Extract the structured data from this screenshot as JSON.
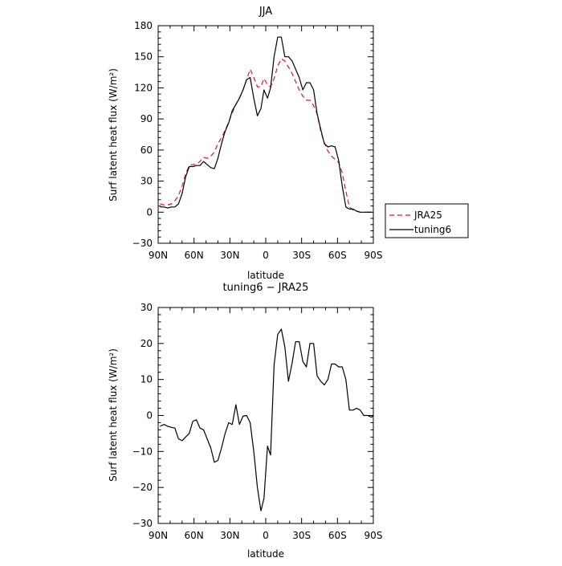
{
  "chart_data": [
    {
      "type": "line",
      "title": "JJA",
      "xlabel": "latitude",
      "ylabel": "Surf latent heat flux (W/m²)",
      "xlim": [
        90,
        -90
      ],
      "ylim": [
        -30,
        180
      ],
      "xticks": [
        90,
        60,
        30,
        0,
        -30,
        -60,
        -90
      ],
      "xtick_labels": [
        "90N",
        "60N",
        "30N",
        "0",
        "30S",
        "60S",
        "90S"
      ],
      "yticks": [
        -30,
        0,
        30,
        60,
        90,
        120,
        150,
        180
      ],
      "ytick_labels": [
        "−30",
        "0",
        "30",
        "60",
        "90",
        "120",
        "150",
        "180"
      ],
      "grid": false,
      "legend": "outside-right",
      "series": [
        {
          "name": "JRA25",
          "color": "#e8141c",
          "dash": "dashed",
          "points": [
            [
              88.5,
              8
            ],
            [
              85,
              7
            ],
            [
              82,
              7
            ],
            [
              79,
              8
            ],
            [
              76,
              11
            ],
            [
              73,
              16
            ],
            [
              70,
              25
            ],
            [
              67,
              37
            ],
            [
              64,
              45
            ],
            [
              61,
              46
            ],
            [
              58,
              46
            ],
            [
              55,
              49
            ],
            [
              52,
              53
            ],
            [
              49,
              52
            ],
            [
              46,
              54
            ],
            [
              43,
              58
            ],
            [
              40,
              66
            ],
            [
              37,
              72
            ],
            [
              34,
              79
            ],
            [
              31,
              87
            ],
            [
              28,
              96
            ],
            [
              25,
              104
            ],
            [
              22,
              110
            ],
            [
              19,
              118
            ],
            [
              16,
              128
            ],
            [
              13,
              138
            ],
            [
              10,
              130
            ],
            [
              7,
              121
            ],
            [
              4,
              121
            ],
            [
              1.5,
              129
            ],
            [
              -1.5,
              123
            ],
            [
              -4,
              121
            ],
            [
              -7,
              129
            ],
            [
              -10,
              141
            ],
            [
              -13,
              148
            ],
            [
              -16,
              146
            ],
            [
              -19,
              140
            ],
            [
              -22,
              134
            ],
            [
              -25,
              126
            ],
            [
              -28,
              118
            ],
            [
              -31,
              112
            ],
            [
              -34,
              108
            ],
            [
              -37,
              108
            ],
            [
              -40,
              103
            ],
            [
              -43,
              95
            ],
            [
              -46,
              78
            ],
            [
              -49,
              67
            ],
            [
              -52,
              59
            ],
            [
              -55,
              54
            ],
            [
              -58,
              51
            ],
            [
              -61,
              48
            ],
            [
              -64,
              38
            ],
            [
              -67,
              20
            ],
            [
              -70,
              5
            ],
            [
              -73,
              2
            ],
            [
              -76,
              1
            ],
            [
              -79,
              0
            ],
            [
              -82,
              0
            ],
            [
              -85,
              0
            ],
            [
              -88.5,
              0
            ]
          ]
        },
        {
          "name": "tuning6",
          "color": "#000000",
          "dash": "solid",
          "points": [
            [
              88.5,
              5
            ],
            [
              85,
              5
            ],
            [
              82,
              4
            ],
            [
              79,
              5
            ],
            [
              76,
              5
            ],
            [
              73,
              8
            ],
            [
              70,
              18
            ],
            [
              67,
              34
            ],
            [
              64,
              44
            ],
            [
              61,
              44
            ],
            [
              58,
              45
            ],
            [
              55,
              45
            ],
            [
              52,
              49
            ],
            [
              49,
              46
            ],
            [
              46,
              43
            ],
            [
              43,
              42
            ],
            [
              40,
              52
            ],
            [
              37,
              66
            ],
            [
              34,
              78
            ],
            [
              31,
              86
            ],
            [
              28,
              98
            ],
            [
              25,
              104
            ],
            [
              22,
              110
            ],
            [
              19,
              118
            ],
            [
              16,
              128
            ],
            [
              13,
              130
            ],
            [
              10,
              110
            ],
            [
              7,
              93
            ],
            [
              4,
              100
            ],
            [
              1.5,
              118
            ],
            [
              -1.5,
              110
            ],
            [
              -4,
              120
            ],
            [
              -7,
              150
            ],
            [
              -10,
              169
            ],
            [
              -13,
              169
            ],
            [
              -16,
              150
            ],
            [
              -19,
              150
            ],
            [
              -22,
              146
            ],
            [
              -25,
              138
            ],
            [
              -28,
              130
            ],
            [
              -31,
              118
            ],
            [
              -34,
              125
            ],
            [
              -37,
              125
            ],
            [
              -40,
              118
            ],
            [
              -43,
              95
            ],
            [
              -46,
              80
            ],
            [
              -49,
              66
            ],
            [
              -52,
              63
            ],
            [
              -55,
              64
            ],
            [
              -58,
              63
            ],
            [
              -61,
              50
            ],
            [
              -64,
              25
            ],
            [
              -67,
              5
            ],
            [
              -70,
              3
            ],
            [
              -73,
              3
            ],
            [
              -76,
              1
            ],
            [
              -79,
              0
            ],
            [
              -82,
              0
            ],
            [
              -85,
              0
            ],
            [
              -88.5,
              0
            ]
          ]
        }
      ]
    },
    {
      "type": "line",
      "title": "tuning6 − JRA25",
      "xlabel": "latitude",
      "ylabel": "Surf latent heat flux (W/m²)",
      "xlim": [
        90,
        -90
      ],
      "ylim": [
        -30,
        30
      ],
      "xticks": [
        90,
        60,
        30,
        0,
        -30,
        -60,
        -90
      ],
      "xtick_labels": [
        "90N",
        "60N",
        "30N",
        "0",
        "30S",
        "60S",
        "90S"
      ],
      "yticks": [
        -30,
        -20,
        -10,
        0,
        10,
        20,
        30
      ],
      "ytick_labels": [
        "−30",
        "−20",
        "−10",
        "0",
        "10",
        "20",
        "30"
      ],
      "grid": false,
      "series": [
        {
          "color": "#000000",
          "dash": "solid",
          "points": [
            [
              88.5,
              -3
            ],
            [
              85,
              -2.5
            ],
            [
              82,
              -3
            ],
            [
              79,
              -3.3
            ],
            [
              76,
              -3.5
            ],
            [
              73,
              -6.5
            ],
            [
              70,
              -7
            ],
            [
              67,
              -6
            ],
            [
              64,
              -5
            ],
            [
              61,
              -1.6
            ],
            [
              58,
              -1.2
            ],
            [
              55,
              -3.5
            ],
            [
              52,
              -4
            ],
            [
              49,
              -6.5
            ],
            [
              46,
              -9
            ],
            [
              43,
              -13
            ],
            [
              40,
              -12.5
            ],
            [
              37,
              -9
            ],
            [
              34,
              -5
            ],
            [
              31,
              -2
            ],
            [
              28,
              -2.5
            ],
            [
              25,
              3
            ],
            [
              22,
              -2.5
            ],
            [
              19,
              -0.2
            ],
            [
              16,
              0
            ],
            [
              13,
              -2
            ],
            [
              10,
              -10
            ],
            [
              7,
              -20
            ],
            [
              4,
              -26.5
            ],
            [
              1.5,
              -23
            ],
            [
              -1.5,
              -8.5
            ],
            [
              -4,
              -11
            ],
            [
              -7,
              14
            ],
            [
              -10,
              22.5
            ],
            [
              -13,
              24
            ],
            [
              -16,
              19
            ],
            [
              -19,
              9.5
            ],
            [
              -22,
              14.5
            ],
            [
              -25,
              20.5
            ],
            [
              -28,
              20.5
            ],
            [
              -31,
              15
            ],
            [
              -34,
              13.5
            ],
            [
              -37,
              20
            ],
            [
              -40,
              20
            ],
            [
              -43,
              11
            ],
            [
              -46,
              9.5
            ],
            [
              -49,
              8.5
            ],
            [
              -52,
              10
            ],
            [
              -55,
              14.3
            ],
            [
              -58,
              14.3
            ],
            [
              -61,
              13.5
            ],
            [
              -64,
              13.5
            ],
            [
              -67,
              10
            ],
            [
              -70,
              1.5
            ],
            [
              -73,
              1.5
            ],
            [
              -76,
              2
            ],
            [
              -79,
              1.5
            ],
            [
              -82,
              0
            ],
            [
              -85,
              0
            ],
            [
              -88.5,
              -0.5
            ],
            [
              -90,
              0
            ]
          ]
        }
      ]
    }
  ]
}
